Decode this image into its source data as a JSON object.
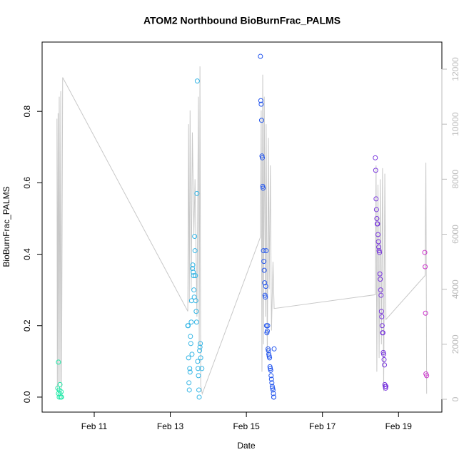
{
  "chart_data": {
    "type": "scatter",
    "title": "ATOM2 Northbound BioBurnFrac_PALMS",
    "x_label": "Date",
    "y_label": "BioBurnFrac_PALMS",
    "xlim": [
      9.63,
      20.14
    ],
    "xticks": [
      {
        "value": 11,
        "label": "Feb 11"
      },
      {
        "value": 13,
        "label": "Feb 13"
      },
      {
        "value": 15,
        "label": "Feb 15"
      },
      {
        "value": 17,
        "label": "Feb 17"
      },
      {
        "value": 19,
        "label": "Feb 19"
      }
    ],
    "ylim": [
      -0.042,
      0.994
    ],
    "yticks": [
      {
        "value": 0,
        "label": "0.0"
      },
      0.2,
      0.4,
      0.6,
      0.8
    ],
    "y2lim": [
      -466,
      12985
    ],
    "y2ticks": [
      0,
      2000,
      4000,
      6000,
      8000,
      10000,
      12000
    ],
    "y2_color": "#bbbbbb",
    "series": [
      {
        "color": "#22e8a8",
        "x": [
          10.04,
          10.06,
          10.06,
          10.08,
          10.08,
          10.1,
          10.1,
          10.12,
          10.13,
          10.14
        ],
        "values": [
          0.025,
          0.098,
          0.01,
          0.0,
          0.02,
          0.035,
          0.01,
          0.0,
          0.015,
          0.0
        ]
      },
      {
        "color": "#33b5e5",
        "x": [
          13.46,
          13.47,
          13.48,
          13.49,
          13.5,
          13.51,
          13.52,
          13.53,
          13.54,
          13.55,
          13.56,
          13.57,
          13.58,
          13.59,
          13.6,
          13.61,
          13.62,
          13.63,
          13.64,
          13.65,
          13.66,
          13.67,
          13.68,
          13.69,
          13.7,
          13.71,
          13.72,
          13.73,
          13.74,
          13.75,
          13.76,
          13.77,
          13.78,
          13.79,
          13.8,
          13.83
        ],
        "values": [
          0.2,
          0.2,
          0.11,
          0.04,
          0.02,
          0.08,
          0.07,
          0.17,
          0.15,
          0.21,
          0.27,
          0.12,
          0.36,
          0.37,
          0.35,
          0.34,
          0.3,
          0.28,
          0.45,
          0.41,
          0.34,
          0.27,
          0.24,
          0.21,
          0.57,
          0.885,
          0.1,
          0.08,
          0.06,
          0.02,
          0.0,
          0.13,
          0.14,
          0.15,
          0.11,
          0.08
        ]
      },
      {
        "color": "#2255ee",
        "x": [
          15.37,
          15.38,
          15.39,
          15.4,
          15.41,
          15.42,
          15.43,
          15.44,
          15.45,
          15.46,
          15.47,
          15.48,
          15.49,
          15.5,
          15.51,
          15.52,
          15.53,
          15.54,
          15.55,
          15.56,
          15.57,
          15.58,
          15.59,
          15.6,
          15.61,
          15.62,
          15.63,
          15.64,
          15.65,
          15.66,
          15.67,
          15.68,
          15.69,
          15.7,
          15.71,
          15.72,
          15.72,
          15.73
        ],
        "values": [
          0.954,
          0.83,
          0.82,
          0.775,
          0.675,
          0.67,
          0.59,
          0.585,
          0.41,
          0.38,
          0.355,
          0.32,
          0.285,
          0.28,
          0.31,
          0.41,
          0.2,
          0.18,
          0.185,
          0.2,
          0.135,
          0.13,
          0.12,
          0.115,
          0.11,
          0.085,
          0.08,
          0.075,
          0.06,
          0.05,
          0.04,
          0.03,
          0.025,
          0.02,
          0.01,
          0.0,
          0.0,
          0.135
        ]
      },
      {
        "color": "#7733dd",
        "x": [
          18.39,
          18.4,
          18.41,
          18.42,
          18.43,
          18.44,
          18.45,
          18.46,
          18.47,
          18.48,
          18.49,
          18.5,
          18.51,
          18.52,
          18.53,
          18.54,
          18.55,
          18.56,
          18.57,
          18.58,
          18.59,
          18.6,
          18.61,
          18.62,
          18.63,
          18.64,
          18.65,
          18.66,
          18.67
        ],
        "values": [
          0.67,
          0.635,
          0.555,
          0.525,
          0.5,
          0.485,
          0.485,
          0.455,
          0.435,
          0.42,
          0.41,
          0.405,
          0.345,
          0.33,
          0.3,
          0.285,
          0.24,
          0.225,
          0.2,
          0.18,
          0.18,
          0.125,
          0.12,
          0.105,
          0.09,
          0.035,
          0.03,
          0.025,
          0.03
        ]
      },
      {
        "color": "#cc33cc",
        "x": [
          19.69,
          19.7,
          19.71,
          19.72,
          19.74
        ],
        "values": [
          0.405,
          0.365,
          0.235,
          0.065,
          0.06
        ]
      },
      {
        "type": "line",
        "axis": "y2",
        "color": "#c8c8c8",
        "x": [
          10.02,
          10.03,
          10.05,
          10.06,
          10.08,
          10.1,
          10.12,
          10.14,
          10.17,
          13.46,
          13.48,
          13.5,
          13.52,
          13.55,
          13.58,
          13.62,
          13.65,
          13.7,
          13.74,
          13.76,
          13.78,
          13.8,
          13.84,
          15.37,
          15.39,
          15.41,
          15.43,
          15.45,
          15.47,
          15.5,
          15.52,
          15.55,
          15.58,
          15.6,
          15.63,
          15.66,
          15.7,
          15.73,
          18.39,
          18.41,
          18.43,
          18.46,
          18.49,
          18.52,
          18.55,
          18.58,
          18.61,
          18.64,
          18.67,
          19.7,
          19.72,
          19.74
        ],
        "values": [
          10200,
          300,
          10400,
          500,
          11000,
          600,
          11200,
          400,
          11700,
          3200,
          10000,
          3500,
          10500,
          4000,
          9700,
          6000,
          8000,
          3000,
          11000,
          2000,
          12100,
          500,
          200,
          5900,
          10500,
          1000,
          11800,
          2000,
          11000,
          3000,
          10000,
          1500,
          9500,
          4000,
          8500,
          2500,
          5000,
          3300,
          3800,
          8500,
          1000,
          7800,
          1500,
          8000,
          2000,
          8400,
          300,
          8200,
          2900,
          4500,
          8600,
          200
        ]
      }
    ]
  }
}
